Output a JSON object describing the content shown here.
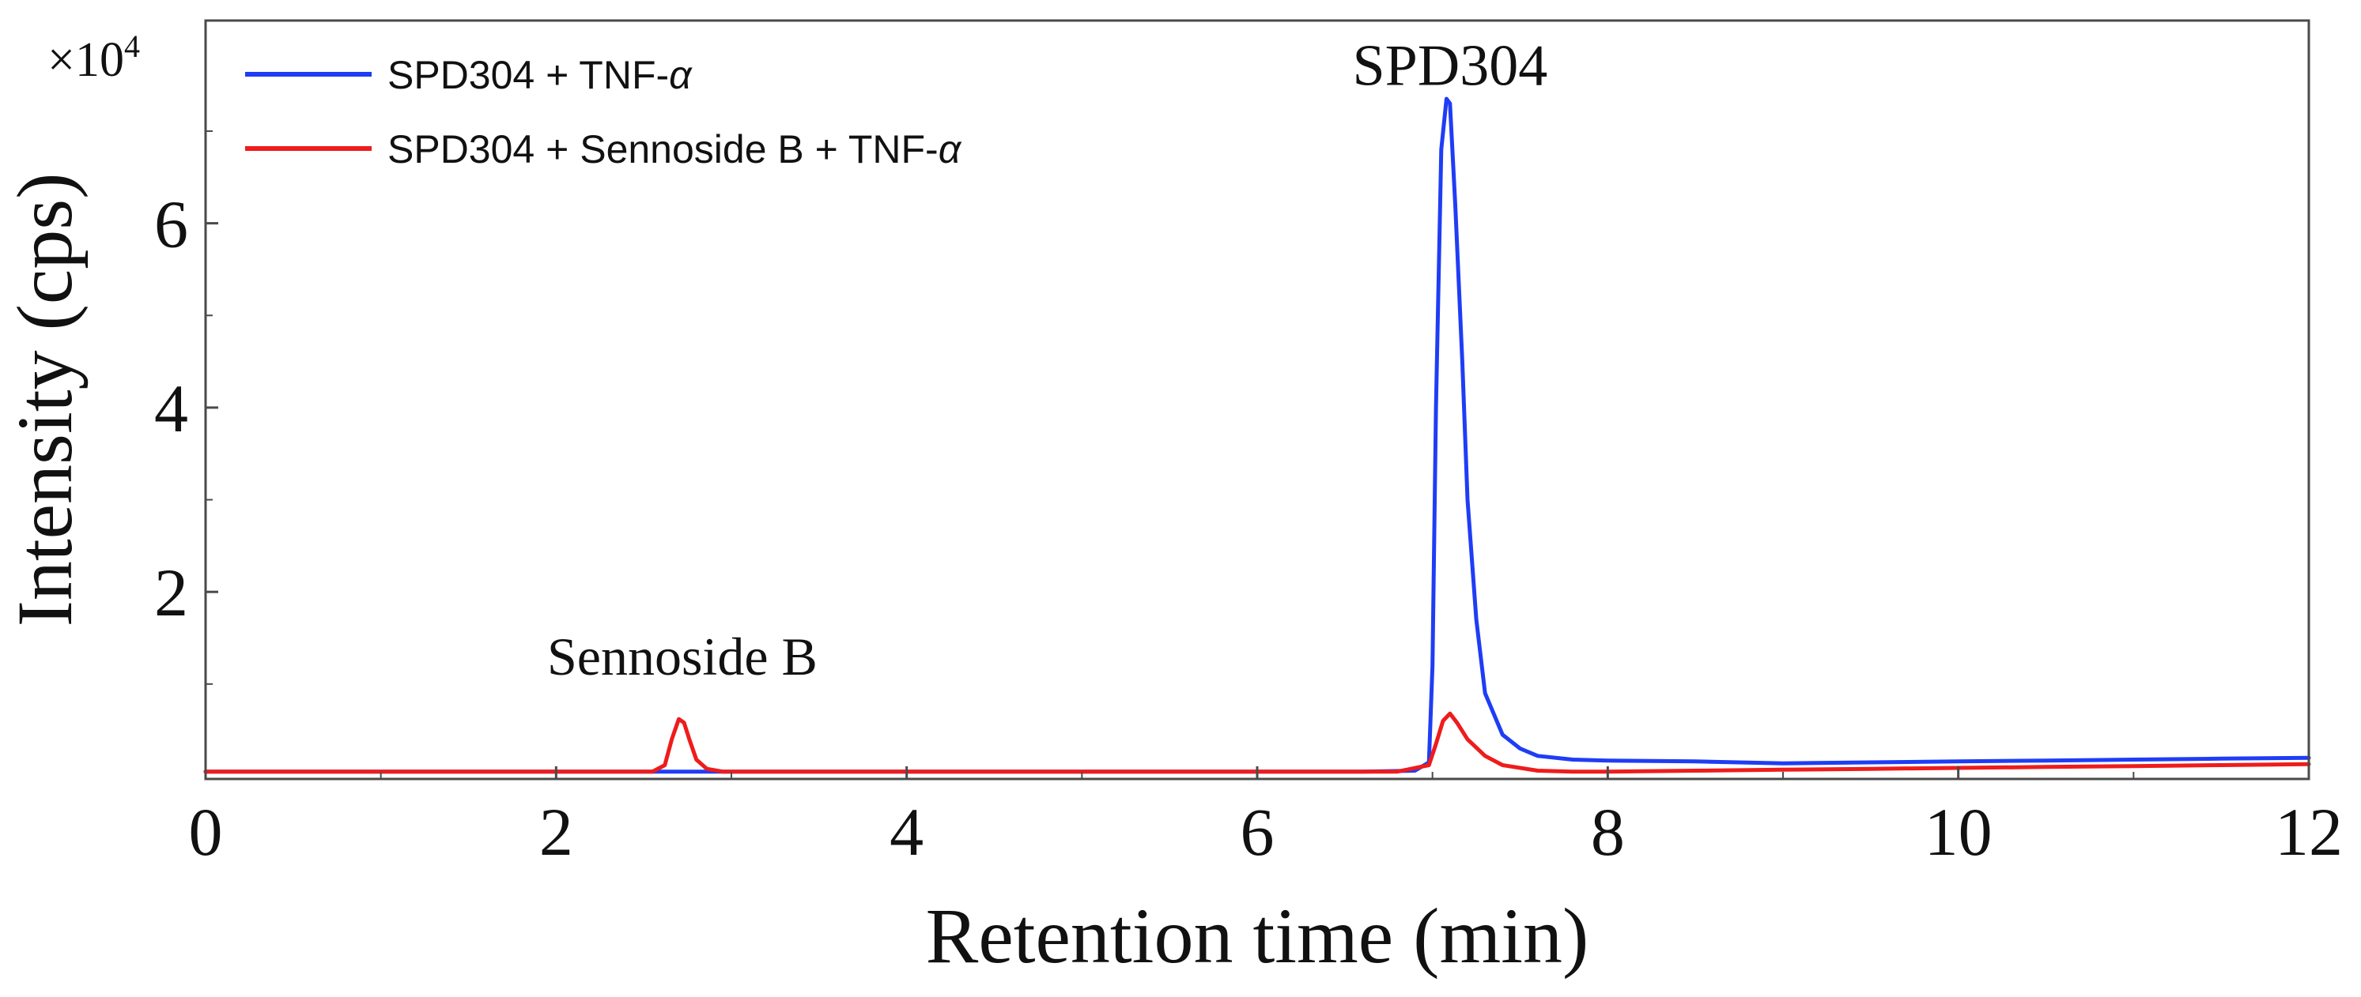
{
  "chart_data": {
    "type": "line",
    "title": "",
    "xlabel": "Retention time (min)",
    "ylabel": "Intensity (cps)",
    "y_multiplier_label": "×10",
    "y_multiplier_exponent": "4",
    "xlim": [
      0,
      12
    ],
    "ylim": [
      -0.03,
      8.2
    ],
    "xticks": [
      0,
      2,
      4,
      6,
      8,
      10,
      12
    ],
    "xtick_labels": [
      "0",
      "2",
      "4",
      "6",
      "8",
      "10",
      "12"
    ],
    "yticks": [
      2,
      4,
      6
    ],
    "ytick_labels": [
      "2",
      "4",
      "6"
    ],
    "legend_position": "top-left",
    "annotations": [
      {
        "text": "SPD304",
        "x": 7.1,
        "y": 7.5
      },
      {
        "text": "Sennoside B",
        "x": 2.72,
        "y": 1.1
      }
    ],
    "series": [
      {
        "name": "SPD304 + TNF-α",
        "legend_prefix": "SPD304 + TNF-",
        "legend_greek": "α",
        "color": "#1f3df5",
        "x": [
          0,
          2,
          4,
          6,
          6.6,
          6.9,
          6.98,
          7.0,
          7.02,
          7.05,
          7.08,
          7.1,
          7.13,
          7.17,
          7.2,
          7.25,
          7.3,
          7.4,
          7.5,
          7.6,
          7.8,
          8.0,
          8.5,
          9.0,
          9.5,
          10.0,
          10.5,
          11.0,
          11.5,
          12.0
        ],
        "y": [
          0.05,
          0.05,
          0.05,
          0.05,
          0.05,
          0.06,
          0.15,
          1.2,
          4.0,
          6.8,
          7.35,
          7.3,
          6.2,
          4.5,
          3.0,
          1.7,
          0.9,
          0.45,
          0.3,
          0.22,
          0.18,
          0.17,
          0.16,
          0.14,
          0.15,
          0.16,
          0.17,
          0.18,
          0.19,
          0.2
        ]
      },
      {
        "name": "SPD304 + Sennoside B + TNF-α",
        "legend_prefix": "SPD304 + Sennoside B + TNF-",
        "legend_greek": "α",
        "color": "#ee1c1c",
        "x": [
          0,
          2,
          2.55,
          2.62,
          2.66,
          2.7,
          2.73,
          2.76,
          2.8,
          2.86,
          2.95,
          3.2,
          4.0,
          5.0,
          6.0,
          6.8,
          6.98,
          7.02,
          7.06,
          7.1,
          7.14,
          7.2,
          7.3,
          7.4,
          7.6,
          7.8,
          8.0,
          8.5,
          9.0,
          9.5,
          10.0,
          10.5,
          11.0,
          11.5,
          12.0
        ],
        "y": [
          0.05,
          0.05,
          0.05,
          0.12,
          0.4,
          0.62,
          0.58,
          0.4,
          0.18,
          0.08,
          0.05,
          0.05,
          0.05,
          0.05,
          0.05,
          0.05,
          0.12,
          0.35,
          0.6,
          0.68,
          0.58,
          0.4,
          0.22,
          0.12,
          0.06,
          0.05,
          0.05,
          0.06,
          0.07,
          0.08,
          0.09,
          0.1,
          0.11,
          0.12,
          0.13
        ]
      }
    ]
  }
}
